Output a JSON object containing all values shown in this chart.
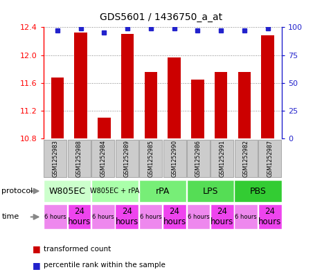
{
  "title": "GDS5601 / 1436750_a_at",
  "samples": [
    "GSM1252983",
    "GSM1252988",
    "GSM1252984",
    "GSM1252989",
    "GSM1252985",
    "GSM1252990",
    "GSM1252986",
    "GSM1252991",
    "GSM1252982",
    "GSM1252987"
  ],
  "transformed_counts": [
    11.68,
    12.32,
    11.1,
    12.3,
    11.76,
    11.97,
    11.65,
    11.76,
    11.76,
    12.28
  ],
  "percentile_ranks": [
    97,
    99,
    95,
    99,
    99,
    99,
    97,
    97,
    97,
    99
  ],
  "ylim": [
    10.8,
    12.4
  ],
  "yticks": [
    10.8,
    11.2,
    11.6,
    12.0,
    12.4
  ],
  "y2ticks": [
    0,
    25,
    50,
    75,
    100
  ],
  "y2lim": [
    0,
    100
  ],
  "bar_color": "#cc0000",
  "dot_color": "#2222cc",
  "proto_labels": [
    "W805EC",
    "W805EC + rPA",
    "rPA",
    "LPS",
    "PBS"
  ],
  "proto_ranges": [
    [
      0,
      2
    ],
    [
      2,
      4
    ],
    [
      4,
      6
    ],
    [
      6,
      8
    ],
    [
      8,
      10
    ]
  ],
  "proto_colors": [
    "#ccffcc",
    "#aaffaa",
    "#77ee77",
    "#55dd55",
    "#33cc33"
  ],
  "proto_fontsizes": [
    9,
    7,
    9,
    9,
    9
  ],
  "time_labels": [
    "6 hours",
    "24\nhours",
    "6 hours",
    "24\nhours",
    "6 hours",
    "24\nhours",
    "6 hours",
    "24\nhours",
    "6 hours",
    "24\nhours"
  ],
  "time_big": [
    false,
    true,
    false,
    true,
    false,
    true,
    false,
    true,
    false,
    true
  ],
  "time_color_small": "#ee88ee",
  "time_color_big": "#ee44ee",
  "sample_bg_color": "#cccccc",
  "sample_border_color": "#aaaaaa"
}
